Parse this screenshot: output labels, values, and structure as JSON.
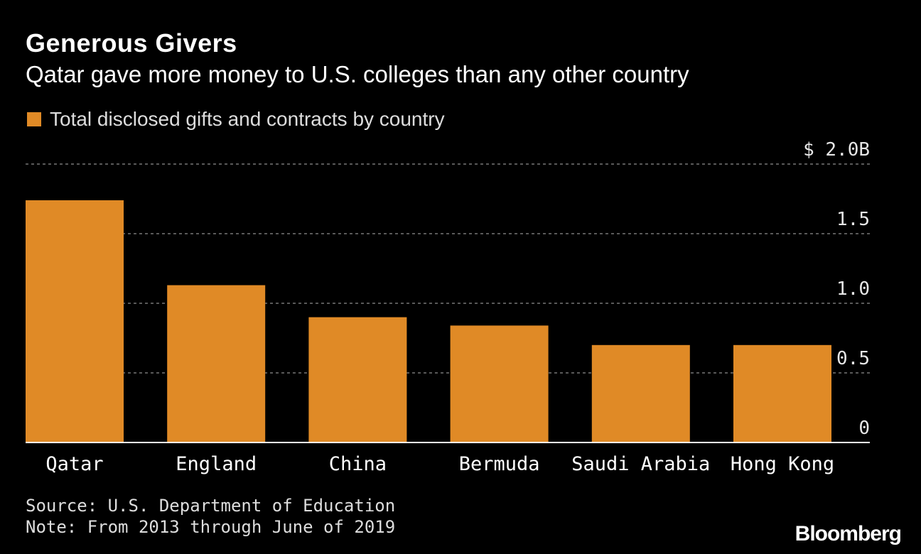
{
  "header": {
    "title": "Generous Givers",
    "subtitle": "Qatar gave more money to U.S. colleges than any other country"
  },
  "legend": {
    "label": "Total disclosed gifts and contracts by country"
  },
  "colors": {
    "bar": "#e08a26",
    "background": "#000000",
    "grid": "#777777"
  },
  "chart_data": {
    "type": "bar",
    "categories": [
      "Qatar",
      "England",
      "China",
      "Bermuda",
      "Saudi Arabia",
      "Hong Kong"
    ],
    "series": [
      {
        "name": "Total disclosed gifts and contracts by country",
        "values": [
          1.74,
          1.13,
          0.9,
          0.84,
          0.7,
          0.7
        ]
      }
    ],
    "ylim": [
      0,
      2.0
    ],
    "y_ticks": [
      0,
      0.5,
      1.0,
      1.5,
      2.0
    ],
    "y_tick_labels": [
      "0",
      "0.5",
      "1.0",
      "1.5",
      "$ 2.0B"
    ],
    "y_axis_position": "right",
    "grid": true,
    "legend_position": "top-left"
  },
  "footer": {
    "source": "Source: U.S. Department of Education",
    "note": "Note: From 2013 through June of 2019",
    "brand": "Bloomberg"
  }
}
